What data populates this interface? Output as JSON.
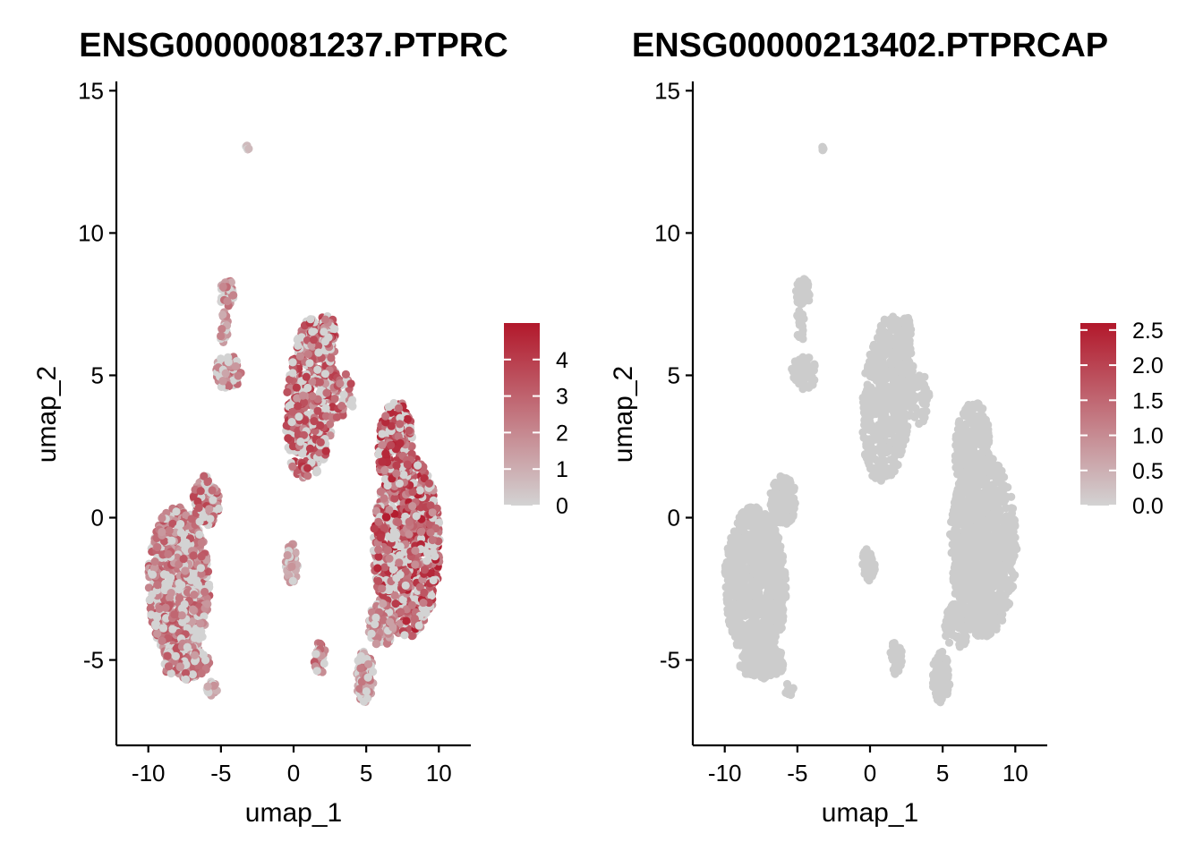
{
  "chart_data": [
    {
      "type": "scatter",
      "title": "ENSG00000081237.PTPRC",
      "xlabel": "umap_1",
      "ylabel": "umap_2",
      "xlim": [
        -12.2,
        12.2
      ],
      "ylim": [
        -8.0,
        15.2
      ],
      "x_ticks": [
        -10,
        -5,
        0,
        5,
        10
      ],
      "x_tick_labels": [
        "-10",
        "-5",
        "0",
        "5",
        "10"
      ],
      "y_ticks": [
        -5,
        0,
        5,
        10,
        15
      ],
      "y_tick_labels": [
        "-5",
        "0",
        "5",
        "10",
        "15"
      ],
      "color_scale": {
        "low": "#d3d3d3",
        "high": "#b2182b",
        "min": 0,
        "max": 5.0
      },
      "legend_ticks": [
        0,
        1,
        2,
        3,
        4
      ],
      "legend_tick_labels": [
        "0",
        "1",
        "2",
        "3",
        "4"
      ],
      "legend_position": "right",
      "grid": false,
      "clusters": [
        {
          "shape": "ellipse",
          "cx": -7.9,
          "cy": -2.4,
          "rx": 2.1,
          "ry": 2.8,
          "rot": 5,
          "n": 900,
          "expr_mean": 2.0
        },
        {
          "shape": "ellipse",
          "cx": -6.0,
          "cy": 0.6,
          "rx": 0.9,
          "ry": 0.9,
          "rot": 0,
          "n": 130,
          "expr_mean": 2.3
        },
        {
          "shape": "ellipse",
          "cx": -7.4,
          "cy": -5.1,
          "rx": 1.6,
          "ry": 0.6,
          "rot": 0,
          "n": 110,
          "expr_mean": 2.0
        },
        {
          "shape": "ellipse",
          "cx": -5.6,
          "cy": -6.0,
          "rx": 0.4,
          "ry": 0.25,
          "rot": 0,
          "n": 14,
          "expr_mean": 1.0
        },
        {
          "shape": "ellipse",
          "cx": 1.2,
          "cy": 4.2,
          "rx": 1.7,
          "ry": 3.0,
          "rot": -12,
          "n": 520,
          "expr_mean": 2.6
        },
        {
          "shape": "ellipse",
          "cx": 2.4,
          "cy": 6.6,
          "rx": 0.5,
          "ry": 0.5,
          "rot": 0,
          "n": 50,
          "expr_mean": 2.7
        },
        {
          "shape": "ellipse",
          "cx": 3.4,
          "cy": 4.2,
          "rx": 0.7,
          "ry": 0.9,
          "rot": 0,
          "n": 40,
          "expr_mean": 2.4
        },
        {
          "shape": "ellipse",
          "cx": 7.8,
          "cy": -1.0,
          "rx": 2.3,
          "ry": 3.2,
          "rot": 0,
          "n": 950,
          "expr_mean": 2.9
        },
        {
          "shape": "ellipse",
          "cx": 7.0,
          "cy": 2.5,
          "rx": 1.2,
          "ry": 1.6,
          "rot": -10,
          "n": 260,
          "expr_mean": 2.8
        },
        {
          "shape": "ellipse",
          "cx": 6.0,
          "cy": -3.8,
          "rx": 0.9,
          "ry": 0.8,
          "rot": 0,
          "n": 80,
          "expr_mean": 1.6
        },
        {
          "shape": "ellipse",
          "cx": 4.9,
          "cy": -5.6,
          "rx": 0.6,
          "ry": 0.9,
          "rot": 0,
          "n": 100,
          "expr_mean": 1.4
        },
        {
          "shape": "ellipse",
          "cx": 1.8,
          "cy": -4.9,
          "rx": 0.4,
          "ry": 0.6,
          "rot": 0,
          "n": 40,
          "expr_mean": 2.1
        },
        {
          "shape": "ellipse",
          "cx": -0.1,
          "cy": -1.6,
          "rx": 0.45,
          "ry": 0.7,
          "rot": 0,
          "n": 45,
          "expr_mean": 1.0
        },
        {
          "shape": "ellipse",
          "cx": -4.6,
          "cy": 7.9,
          "rx": 0.5,
          "ry": 0.5,
          "rot": 0,
          "n": 40,
          "expr_mean": 1.6
        },
        {
          "shape": "ellipse",
          "cx": -4.5,
          "cy": 5.1,
          "rx": 0.9,
          "ry": 0.6,
          "rot": 0,
          "n": 75,
          "expr_mean": 1.7
        },
        {
          "shape": "ellipse",
          "cx": -4.8,
          "cy": 6.7,
          "rx": 0.3,
          "ry": 0.6,
          "rot": 0,
          "n": 18,
          "expr_mean": 1.4
        },
        {
          "shape": "ellipse",
          "cx": -3.2,
          "cy": 13.0,
          "rx": 0.12,
          "ry": 0.1,
          "rot": 0,
          "n": 6,
          "expr_mean": 0.6
        }
      ]
    },
    {
      "type": "scatter",
      "title": "ENSG00000213402.PTPRCAP",
      "xlabel": "umap_1",
      "ylabel": "umap_2",
      "xlim": [
        -12.2,
        12.2
      ],
      "ylim": [
        -8.0,
        15.2
      ],
      "x_ticks": [
        -10,
        -5,
        0,
        5,
        10
      ],
      "x_tick_labels": [
        "-10",
        "-5",
        "0",
        "5",
        "10"
      ],
      "y_ticks": [
        -5,
        0,
        5,
        10,
        15
      ],
      "y_tick_labels": [
        "-5",
        "0",
        "5",
        "10",
        "15"
      ],
      "color_scale": {
        "low": "#d3d3d3",
        "high": "#b2182b",
        "min": 0,
        "max": 2.6
      },
      "legend_ticks": [
        0.0,
        0.5,
        1.0,
        1.5,
        2.0,
        2.5
      ],
      "legend_tick_labels": [
        "0.0",
        "0.5",
        "1.0",
        "1.5",
        "2.0",
        "2.5"
      ],
      "legend_position": "right",
      "grid": false,
      "point_color": "#cccccc",
      "clusters": [
        {
          "shape": "ellipse",
          "cx": -7.9,
          "cy": -2.4,
          "rx": 2.1,
          "ry": 2.8,
          "rot": 5,
          "n": 900,
          "expr_mean": 0
        },
        {
          "shape": "ellipse",
          "cx": -6.0,
          "cy": 0.6,
          "rx": 0.9,
          "ry": 0.9,
          "rot": 0,
          "n": 130,
          "expr_mean": 0
        },
        {
          "shape": "ellipse",
          "cx": -7.4,
          "cy": -5.1,
          "rx": 1.6,
          "ry": 0.6,
          "rot": 0,
          "n": 110,
          "expr_mean": 0
        },
        {
          "shape": "ellipse",
          "cx": -5.6,
          "cy": -6.0,
          "rx": 0.4,
          "ry": 0.25,
          "rot": 0,
          "n": 14,
          "expr_mean": 0
        },
        {
          "shape": "ellipse",
          "cx": 1.2,
          "cy": 4.2,
          "rx": 1.7,
          "ry": 3.0,
          "rot": -12,
          "n": 520,
          "expr_mean": 0
        },
        {
          "shape": "ellipse",
          "cx": 2.4,
          "cy": 6.6,
          "rx": 0.5,
          "ry": 0.5,
          "rot": 0,
          "n": 50,
          "expr_mean": 0
        },
        {
          "shape": "ellipse",
          "cx": 3.4,
          "cy": 4.2,
          "rx": 0.7,
          "ry": 0.9,
          "rot": 0,
          "n": 40,
          "expr_mean": 0
        },
        {
          "shape": "ellipse",
          "cx": 7.8,
          "cy": -1.0,
          "rx": 2.3,
          "ry": 3.2,
          "rot": 0,
          "n": 950,
          "expr_mean": 0
        },
        {
          "shape": "ellipse",
          "cx": 7.0,
          "cy": 2.5,
          "rx": 1.2,
          "ry": 1.6,
          "rot": -10,
          "n": 260,
          "expr_mean": 0
        },
        {
          "shape": "ellipse",
          "cx": 6.0,
          "cy": -3.8,
          "rx": 0.9,
          "ry": 0.8,
          "rot": 0,
          "n": 80,
          "expr_mean": 0
        },
        {
          "shape": "ellipse",
          "cx": 4.9,
          "cy": -5.6,
          "rx": 0.6,
          "ry": 0.9,
          "rot": 0,
          "n": 100,
          "expr_mean": 0
        },
        {
          "shape": "ellipse",
          "cx": 1.8,
          "cy": -4.9,
          "rx": 0.4,
          "ry": 0.6,
          "rot": 0,
          "n": 40,
          "expr_mean": 0
        },
        {
          "shape": "ellipse",
          "cx": -0.1,
          "cy": -1.6,
          "rx": 0.45,
          "ry": 0.7,
          "rot": 0,
          "n": 45,
          "expr_mean": 0
        },
        {
          "shape": "ellipse",
          "cx": -4.6,
          "cy": 7.9,
          "rx": 0.5,
          "ry": 0.5,
          "rot": 0,
          "n": 40,
          "expr_mean": 0
        },
        {
          "shape": "ellipse",
          "cx": -4.5,
          "cy": 5.1,
          "rx": 0.9,
          "ry": 0.6,
          "rot": 0,
          "n": 75,
          "expr_mean": 0
        },
        {
          "shape": "ellipse",
          "cx": -4.8,
          "cy": 6.7,
          "rx": 0.3,
          "ry": 0.6,
          "rot": 0,
          "n": 18,
          "expr_mean": 0
        },
        {
          "shape": "ellipse",
          "cx": -3.2,
          "cy": 13.0,
          "rx": 0.12,
          "ry": 0.1,
          "rot": 0,
          "n": 6,
          "expr_mean": 0
        }
      ]
    }
  ]
}
